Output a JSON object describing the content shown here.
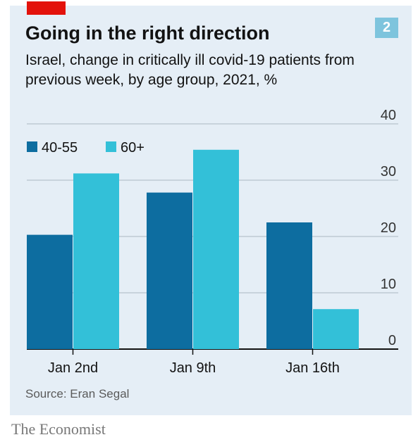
{
  "badge": "2",
  "title": "Going in the right direction",
  "subtitle": "Israel, change in critically ill covid-19 patients from previous week, by age group, 2021, %",
  "source": "Source: Eran Segal",
  "brand": "The Economist",
  "colors": {
    "series_a": "#0d6da0",
    "series_b": "#33c0d8",
    "accent": "#e3120b",
    "background": "#e5eef6"
  },
  "chart_data": {
    "type": "bar",
    "categories": [
      "Jan 2nd",
      "Jan 9th",
      "Jan 16th"
    ],
    "series": [
      {
        "name": "40-55",
        "values": [
          20.3,
          27.8,
          22.5
        ]
      },
      {
        "name": "60+",
        "values": [
          31.2,
          35.4,
          7.1
        ]
      }
    ],
    "ylim": [
      0,
      40
    ],
    "yticks": [
      0,
      10,
      20,
      30,
      40
    ],
    "ytick_labels": [
      "0",
      "10",
      "20",
      "30",
      "40"
    ],
    "grid": true,
    "legend": "top-left",
    "ylabel": "",
    "xlabel": ""
  }
}
